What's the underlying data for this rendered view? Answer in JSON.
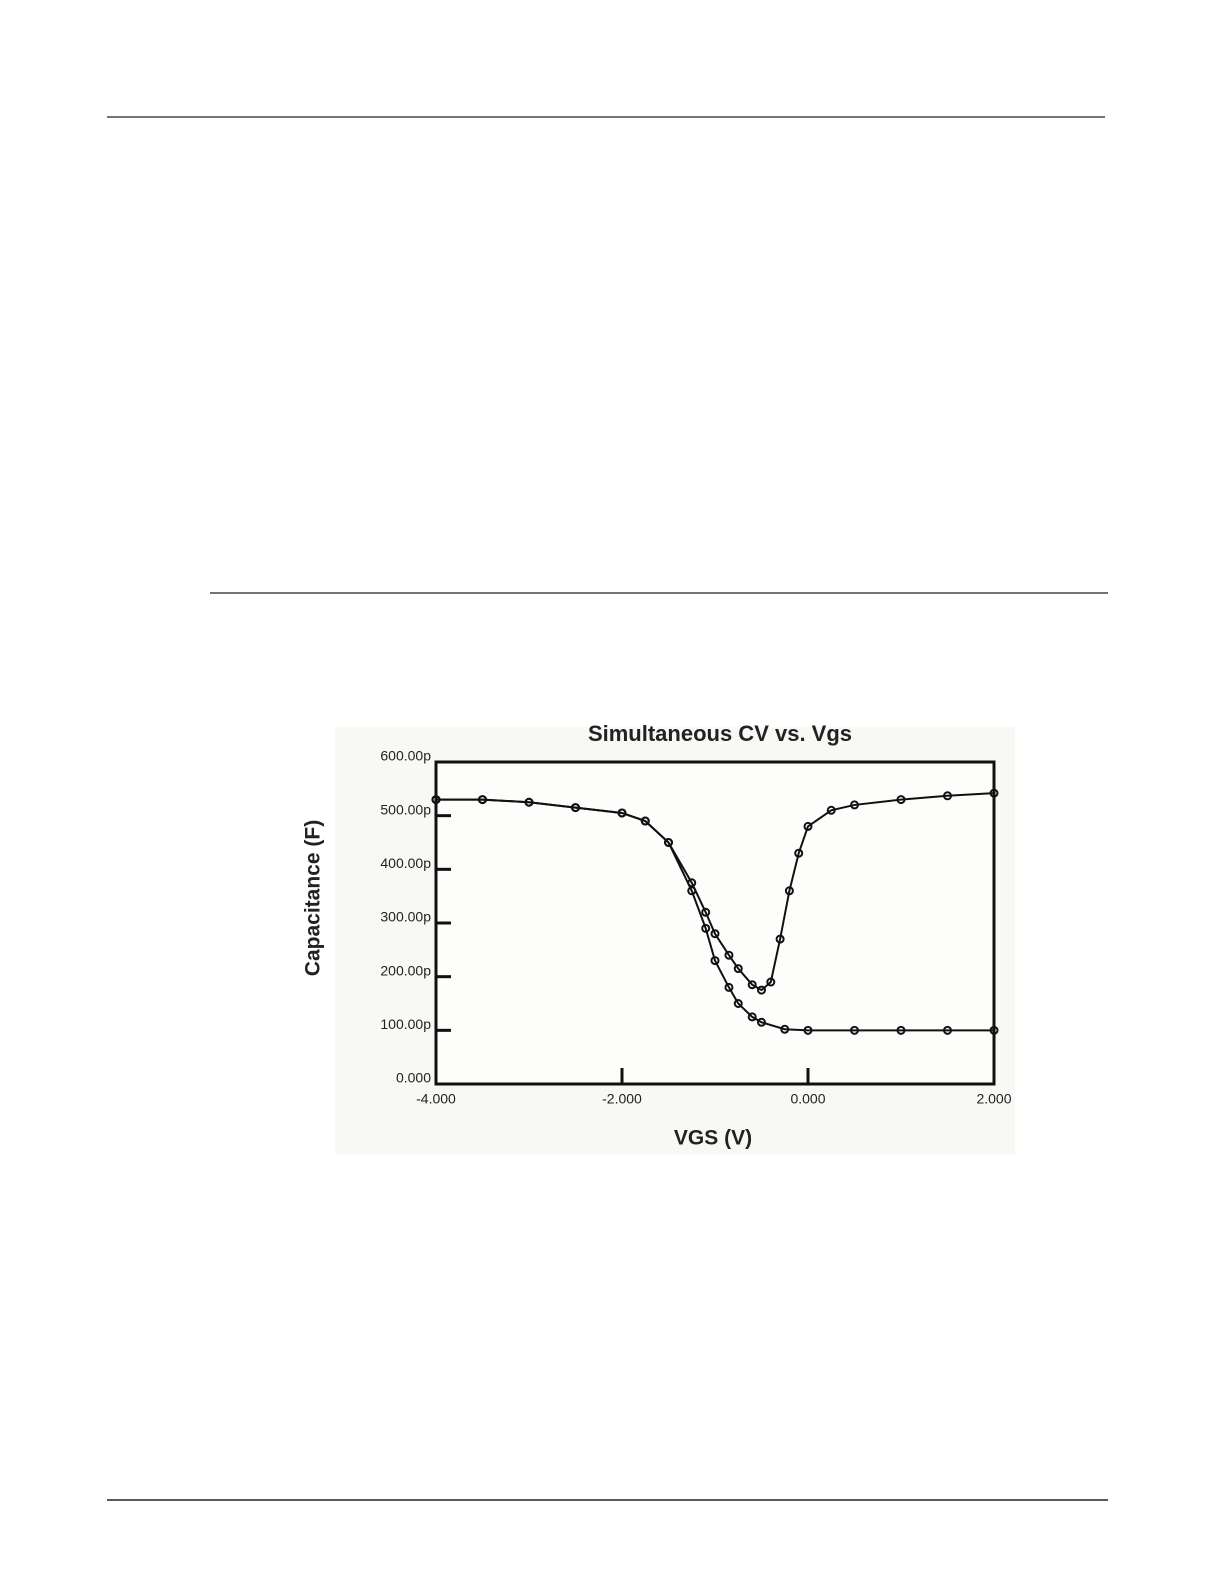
{
  "chart_data": {
    "type": "line",
    "title": "Simultaneous CV vs. Vgs",
    "x_label": "VGS (V)",
    "y_label": "Capacitance (F)",
    "series": [
      {
        "color": "#111111",
        "x": [
          -4,
          -3.5,
          -3,
          -2.5,
          -2,
          -1.75,
          -1.5,
          -1.25,
          -1.1,
          -1.0,
          -0.85,
          -0.75,
          -0.6,
          -0.5,
          -0.25,
          0,
          0.5,
          1,
          1.5,
          2
        ],
        "values": [
          530,
          530,
          525,
          515,
          505,
          490,
          450,
          360,
          290,
          230,
          180,
          150,
          125,
          115,
          102,
          100,
          100,
          100,
          100,
          100
        ]
      },
      {
        "color": "#111111",
        "x": [
          -4,
          -3.5,
          -3,
          -2.5,
          -2,
          -1.75,
          -1.5,
          -1.25,
          -1.1,
          -1.0,
          -0.85,
          -0.75,
          -0.6,
          -0.5,
          -0.4,
          -0.3,
          -0.2,
          -0.1,
          0,
          0.25,
          0.5,
          1,
          1.5,
          2
        ],
        "values": [
          530,
          530,
          525,
          515,
          505,
          490,
          450,
          375,
          320,
          280,
          240,
          215,
          185,
          175,
          190,
          270,
          360,
          430,
          480,
          510,
          520,
          530,
          537,
          542
        ]
      }
    ],
    "xlim": [
      -4,
      2
    ],
    "xticks": [
      {
        "value": -4,
        "label": "-4.000"
      },
      {
        "value": -2,
        "label": "-2.000"
      },
      {
        "value": 0,
        "label": "0.000"
      },
      {
        "value": 2,
        "label": "2.000"
      }
    ],
    "ylim": [
      0,
      600
    ],
    "yticks": [
      {
        "value": 0,
        "label": "0.000"
      },
      {
        "value": 100,
        "label": "100.00p"
      },
      {
        "value": 200,
        "label": "200.00p"
      },
      {
        "value": 300,
        "label": "300.00p"
      },
      {
        "value": 400,
        "label": "400.00p"
      },
      {
        "value": 500,
        "label": "500.00p"
      },
      {
        "value": 600,
        "label": "600.00p"
      }
    ]
  }
}
